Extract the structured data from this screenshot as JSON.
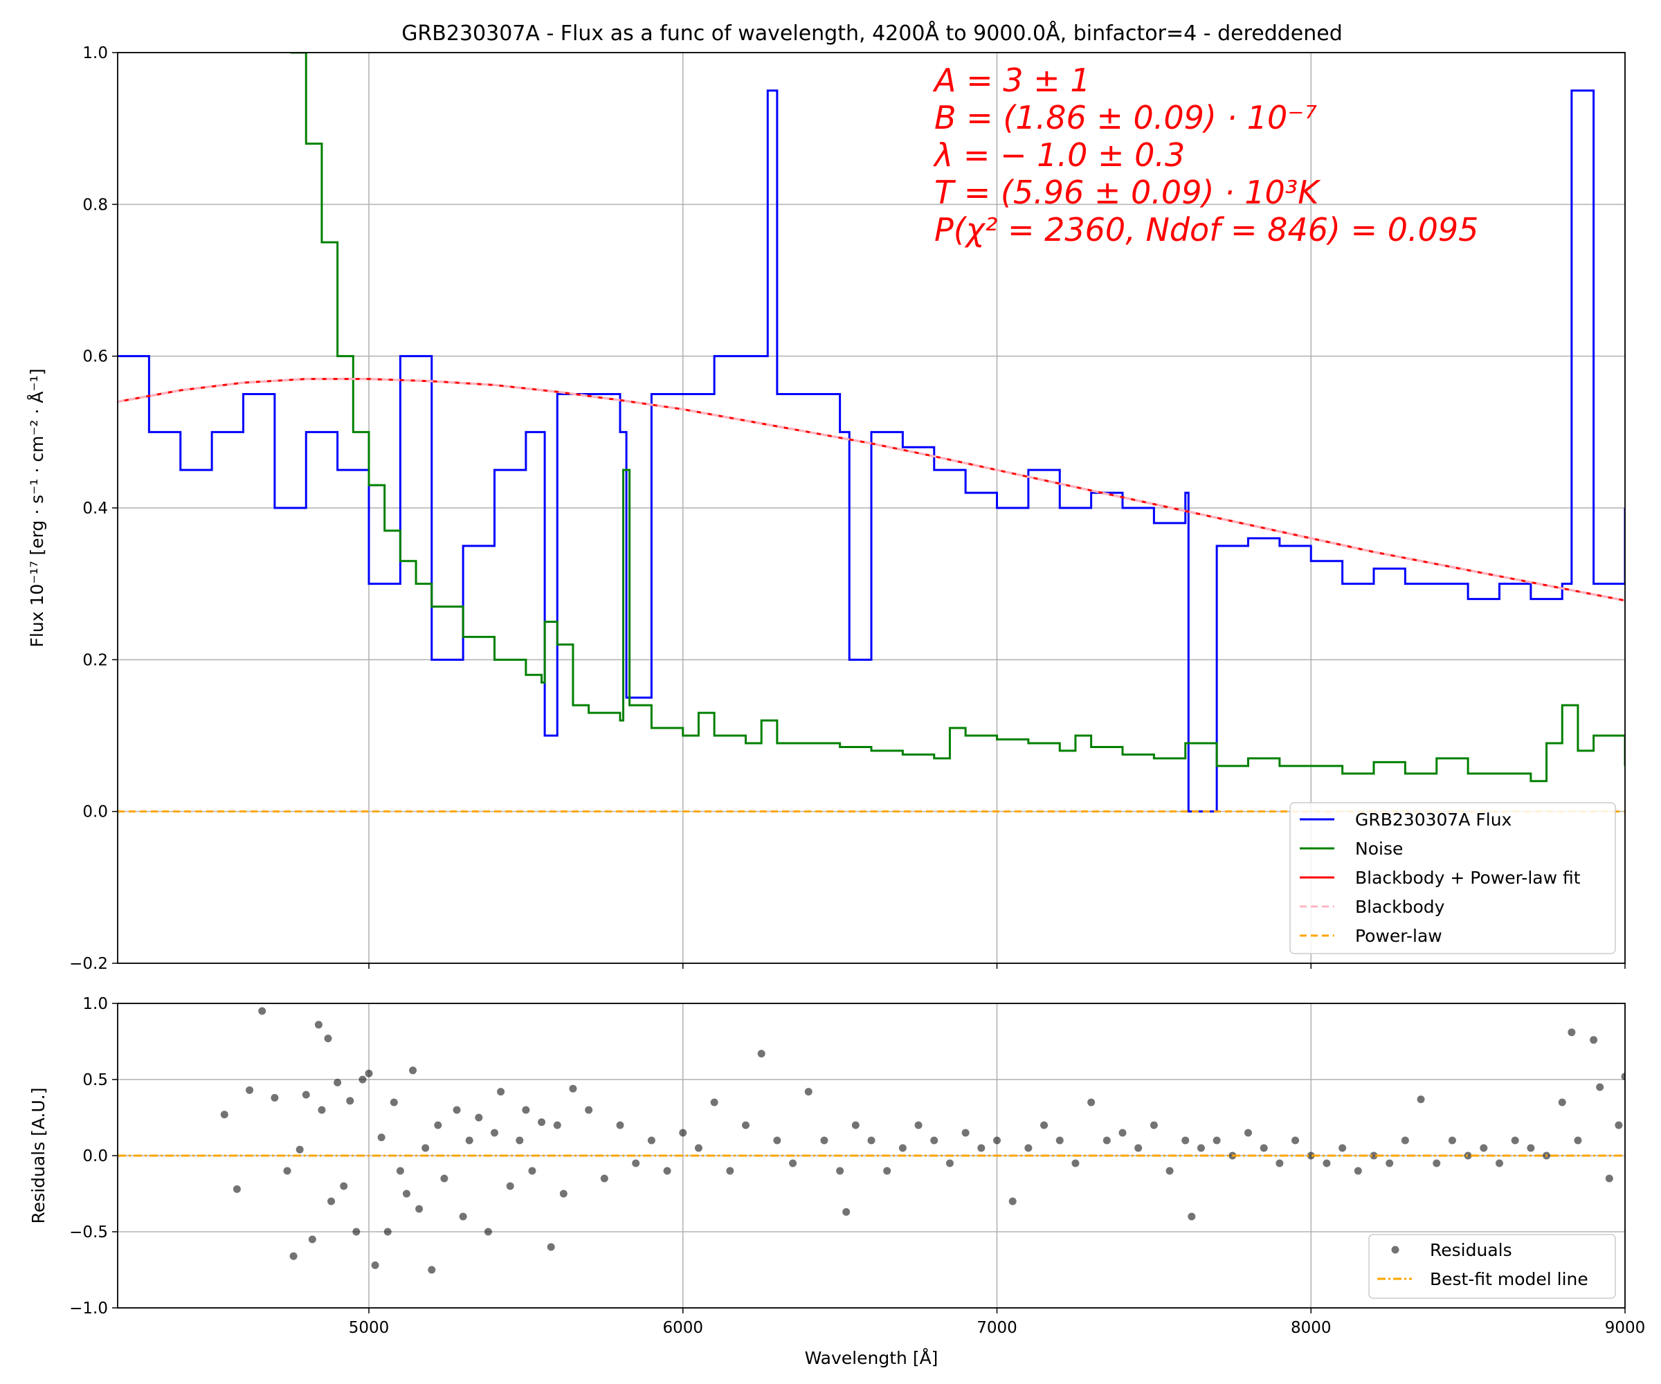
{
  "chart_data": [
    {
      "type": "line",
      "title": "GRB230307A - Flux as a func of wavelength, 4200Å to 9000.0Å, binfactor=4 - dereddened",
      "xlabel": "",
      "ylabel": "Flux 10⁻¹⁷ [erg · s⁻¹ · cm⁻² · Å⁻¹]",
      "xlim": [
        4200,
        9000
      ],
      "ylim": [
        -0.2,
        1.0
      ],
      "x_ticks": [
        5000,
        6000,
        7000,
        8000,
        9000
      ],
      "y_ticks": [
        -0.2,
        0.0,
        0.2,
        0.4,
        0.6,
        0.8,
        1.0
      ],
      "y_tick_labels": [
        "−0.2",
        "0.0",
        "0.2",
        "0.4",
        "0.6",
        "0.8",
        "1.0"
      ],
      "grid": true,
      "legend_position": "lower-right",
      "annotations": [
        "A = 3 ± 1",
        "B = (1.86 ± 0.09) · 10⁻⁷",
        "λ = − 1.0 ± 0.3",
        "T = (5.96 ± 0.09) · 10³K",
        "P(χ² = 2360, Ndof = 846) = 0.095"
      ],
      "series": [
        {
          "name": "GRB230307A Flux",
          "color": "#0000ff",
          "style": "steps",
          "x": [
            4200,
            4300,
            4400,
            4500,
            4600,
            4700,
            4800,
            4900,
            5000,
            5100,
            5200,
            5300,
            5400,
            5500,
            5560,
            5600,
            5700,
            5800,
            5820,
            5900,
            6000,
            6100,
            6200,
            6270,
            6300,
            6400,
            6500,
            6530,
            6600,
            6700,
            6800,
            6900,
            7000,
            7100,
            7200,
            7300,
            7400,
            7500,
            7600,
            7610,
            7700,
            7800,
            7900,
            8000,
            8100,
            8200,
            8300,
            8400,
            8500,
            8600,
            8700,
            8800,
            8830,
            8900,
            9000
          ],
          "y": [
            0.6,
            0.5,
            0.45,
            0.5,
            0.55,
            0.4,
            0.5,
            0.45,
            0.3,
            0.6,
            0.2,
            0.35,
            0.45,
            0.5,
            0.1,
            0.55,
            0.55,
            0.5,
            0.15,
            0.55,
            0.55,
            0.6,
            0.6,
            0.95,
            0.55,
            0.55,
            0.5,
            0.2,
            0.5,
            0.48,
            0.45,
            0.42,
            0.4,
            0.45,
            0.4,
            0.42,
            0.4,
            0.38,
            0.42,
            0.0,
            0.35,
            0.36,
            0.35,
            0.33,
            0.3,
            0.32,
            0.3,
            0.3,
            0.28,
            0.3,
            0.28,
            0.3,
            0.95,
            0.3,
            0.4
          ]
        },
        {
          "name": "Noise",
          "color": "#008000",
          "style": "steps",
          "x": [
            4750,
            4800,
            4850,
            4900,
            4950,
            5000,
            5050,
            5100,
            5150,
            5200,
            5300,
            5400,
            5500,
            5550,
            5560,
            5600,
            5650,
            5700,
            5800,
            5810,
            5830,
            5900,
            6000,
            6050,
            6100,
            6200,
            6250,
            6300,
            6400,
            6500,
            6600,
            6700,
            6800,
            6850,
            6900,
            7000,
            7100,
            7200,
            7250,
            7300,
            7400,
            7500,
            7600,
            7700,
            7800,
            7900,
            8000,
            8100,
            8200,
            8300,
            8400,
            8500,
            8600,
            8700,
            8750,
            8800,
            8850,
            8900,
            9000
          ],
          "y": [
            1.0,
            0.88,
            0.75,
            0.6,
            0.5,
            0.43,
            0.37,
            0.33,
            0.3,
            0.27,
            0.23,
            0.2,
            0.18,
            0.17,
            0.25,
            0.22,
            0.14,
            0.13,
            0.12,
            0.45,
            0.14,
            0.11,
            0.1,
            0.13,
            0.1,
            0.09,
            0.12,
            0.09,
            0.09,
            0.085,
            0.08,
            0.075,
            0.07,
            0.11,
            0.1,
            0.095,
            0.09,
            0.08,
            0.1,
            0.085,
            0.075,
            0.07,
            0.09,
            0.06,
            0.07,
            0.06,
            0.06,
            0.05,
            0.065,
            0.05,
            0.07,
            0.05,
            0.05,
            0.04,
            0.09,
            0.14,
            0.08,
            0.1,
            0.06
          ]
        },
        {
          "name": "Blackbody + Power-law fit",
          "color": "#ff0000",
          "style": "line",
          "x": [
            4200,
            4400,
            4600,
            4800,
            5000,
            5200,
            5400,
            5600,
            5800,
            6000,
            6200,
            6400,
            6600,
            6800,
            7000,
            7200,
            7400,
            7600,
            7800,
            8000,
            8200,
            8400,
            8600,
            8800,
            9000
          ],
          "y": [
            0.54,
            0.555,
            0.565,
            0.57,
            0.57,
            0.567,
            0.562,
            0.553,
            0.542,
            0.53,
            0.515,
            0.5,
            0.485,
            0.468,
            0.45,
            0.432,
            0.414,
            0.396,
            0.378,
            0.36,
            0.342,
            0.326,
            0.31,
            0.294,
            0.278
          ]
        },
        {
          "name": "Blackbody",
          "color": "#ffb6c1",
          "style": "dashed",
          "x": [
            4200,
            4400,
            4600,
            4800,
            5000,
            5200,
            5400,
            5600,
            5800,
            6000,
            6200,
            6400,
            6600,
            6800,
            7000,
            7200,
            7400,
            7600,
            7800,
            8000,
            8200,
            8400,
            8600,
            8800,
            9000
          ],
          "y": [
            0.54,
            0.555,
            0.565,
            0.57,
            0.57,
            0.567,
            0.562,
            0.553,
            0.542,
            0.53,
            0.515,
            0.5,
            0.485,
            0.468,
            0.45,
            0.432,
            0.414,
            0.396,
            0.378,
            0.36,
            0.342,
            0.326,
            0.31,
            0.294,
            0.278
          ]
        },
        {
          "name": "Power-law",
          "color": "#ffa500",
          "style": "dashed",
          "x": [
            4200,
            9000
          ],
          "y": [
            0.0,
            0.0
          ]
        }
      ]
    },
    {
      "type": "scatter",
      "title": "",
      "xlabel": "Wavelength [Å]",
      "ylabel": "Residuals [A.U.]",
      "xlim": [
        4200,
        9000
      ],
      "ylim": [
        -1.0,
        1.0
      ],
      "x_ticks": [
        5000,
        6000,
        7000,
        8000,
        9000
      ],
      "y_ticks": [
        -1.0,
        -0.5,
        0.0,
        0.5,
        1.0
      ],
      "y_tick_labels": [
        "−1.0",
        "−0.5",
        "0.0",
        "0.5",
        "1.0"
      ],
      "grid": true,
      "legend_position": "lower-right",
      "series": [
        {
          "name": "Residuals",
          "color": "#000000",
          "style": "markers",
          "x": [
            4540,
            4580,
            4620,
            4660,
            4700,
            4740,
            4760,
            4780,
            4800,
            4820,
            4840,
            4850,
            4870,
            4880,
            4900,
            4920,
            4940,
            4960,
            4980,
            5000,
            5020,
            5040,
            5060,
            5080,
            5100,
            5120,
            5140,
            5160,
            5180,
            5200,
            5220,
            5240,
            5280,
            5300,
            5320,
            5350,
            5380,
            5400,
            5420,
            5450,
            5480,
            5500,
            5520,
            5550,
            5580,
            5600,
            5620,
            5650,
            5700,
            5750,
            5800,
            5850,
            5900,
            5950,
            6000,
            6050,
            6100,
            6150,
            6200,
            6250,
            6300,
            6350,
            6400,
            6450,
            6500,
            6520,
            6550,
            6600,
            6650,
            6700,
            6750,
            6800,
            6850,
            6900,
            6950,
            7000,
            7050,
            7100,
            7150,
            7200,
            7250,
            7300,
            7350,
            7400,
            7450,
            7500,
            7550,
            7600,
            7620,
            7650,
            7700,
            7750,
            7800,
            7850,
            7900,
            7950,
            8000,
            8050,
            8100,
            8150,
            8200,
            8250,
            8300,
            8350,
            8400,
            8450,
            8500,
            8550,
            8600,
            8650,
            8700,
            8750,
            8800,
            8830,
            8850,
            8900,
            8920,
            8950,
            8980,
            9000
          ],
          "y": [
            0.27,
            -0.22,
            0.43,
            0.95,
            0.38,
            -0.1,
            -0.66,
            0.04,
            0.4,
            -0.55,
            0.86,
            0.3,
            0.77,
            -0.3,
            0.48,
            -0.2,
            0.36,
            -0.5,
            0.5,
            0.54,
            -0.72,
            0.12,
            -0.5,
            0.35,
            -0.1,
            -0.25,
            0.56,
            -0.35,
            0.05,
            -0.75,
            0.2,
            -0.15,
            0.3,
            -0.4,
            0.1,
            0.25,
            -0.5,
            0.15,
            0.42,
            -0.2,
            0.1,
            0.3,
            -0.1,
            0.22,
            -0.6,
            0.2,
            -0.25,
            0.44,
            0.3,
            -0.15,
            0.2,
            -0.05,
            0.1,
            -0.1,
            0.15,
            0.05,
            0.35,
            -0.1,
            0.2,
            0.67,
            0.1,
            -0.05,
            0.42,
            0.1,
            -0.1,
            -0.37,
            0.2,
            0.1,
            -0.1,
            0.05,
            0.2,
            0.1,
            -0.05,
            0.15,
            0.05,
            0.1,
            -0.3,
            0.05,
            0.2,
            0.1,
            -0.05,
            0.35,
            0.1,
            0.15,
            0.05,
            0.2,
            -0.1,
            0.1,
            -0.4,
            0.05,
            0.1,
            0.0,
            0.15,
            0.05,
            -0.05,
            0.1,
            0.0,
            -0.05,
            0.05,
            -0.1,
            0.0,
            -0.05,
            0.1,
            0.37,
            -0.05,
            0.1,
            0.0,
            0.05,
            -0.05,
            0.1,
            0.05,
            0.0,
            0.35,
            0.81,
            0.1,
            0.76,
            0.45,
            -0.15,
            0.2,
            0.52
          ]
        },
        {
          "name": "Best-fit model line",
          "color": "#ffa500",
          "style": "dashdot",
          "x": [
            4200,
            9000
          ],
          "y": [
            0.0,
            0.0
          ]
        }
      ]
    }
  ]
}
